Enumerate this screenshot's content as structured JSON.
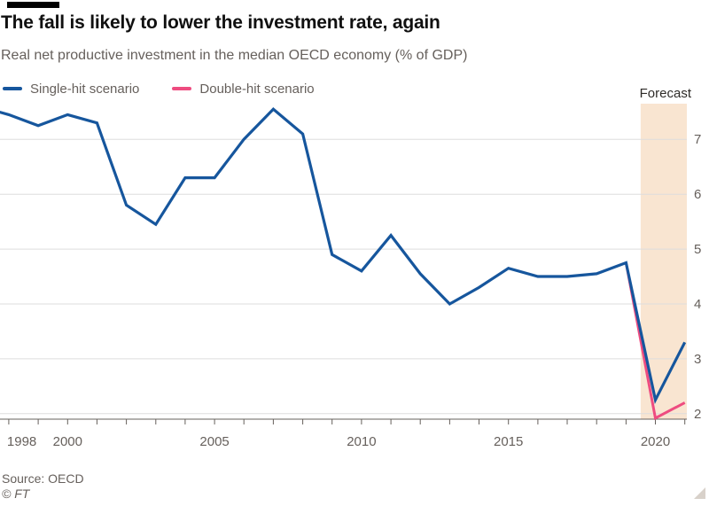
{
  "footer": {
    "source": "Source: OECD",
    "copyright": "© FT"
  },
  "chart_data": {
    "type": "line",
    "title": "The fall is likely to lower the investment rate, again",
    "subtitle": "Real net productive investment in the median OECD economy (% of GDP)",
    "xlabel": "",
    "ylabel": "% of GDP",
    "grid": "horizontal",
    "legend_position": "top-left",
    "x_range": [
      1997.7,
      2021.07
    ],
    "y_range": [
      1.9,
      7.65
    ],
    "y_ticks": [
      2,
      3,
      4,
      5,
      6,
      7
    ],
    "y_tick_side": "right",
    "x_ticks_minor": [
      1998,
      1999,
      2000,
      2001,
      2002,
      2003,
      2004,
      2005,
      2006,
      2007,
      2008,
      2009,
      2010,
      2011,
      2012,
      2013,
      2014,
      2015,
      2016,
      2017,
      2018,
      2019,
      2020,
      2021
    ],
    "x_tick_labels": [
      1998,
      2000,
      2005,
      2010,
      2015,
      2020
    ],
    "forecast_band": {
      "label": "Forecast",
      "start": 2019.5,
      "end": 2021.07,
      "color": "#f9e5d1"
    },
    "axis_color": "#66605c",
    "gridline_color": "#dddddd",
    "series": [
      {
        "name": "Single-hit scenario",
        "color": "#16569d",
        "stroke_width": 3.2,
        "years": [
          1997,
          1998,
          1999,
          2000,
          2001,
          2002,
          2003,
          2004,
          2005,
          2006,
          2007,
          2008,
          2009,
          2010,
          2011,
          2012,
          2013,
          2014,
          2015,
          2016,
          2017,
          2018,
          2019,
          2020,
          2021
        ],
        "values": [
          7.6,
          7.45,
          7.25,
          7.45,
          7.3,
          5.8,
          5.45,
          6.3,
          6.3,
          7.0,
          7.55,
          7.1,
          4.9,
          4.6,
          5.25,
          4.55,
          4.0,
          4.3,
          4.65,
          4.5,
          4.5,
          4.55,
          4.75,
          2.25,
          3.3
        ]
      },
      {
        "name": "Double-hit scenario",
        "color": "#ee4c80",
        "stroke_width": 3,
        "years": [
          2019,
          2020,
          2021
        ],
        "values": [
          4.75,
          1.92,
          2.2
        ]
      }
    ]
  }
}
